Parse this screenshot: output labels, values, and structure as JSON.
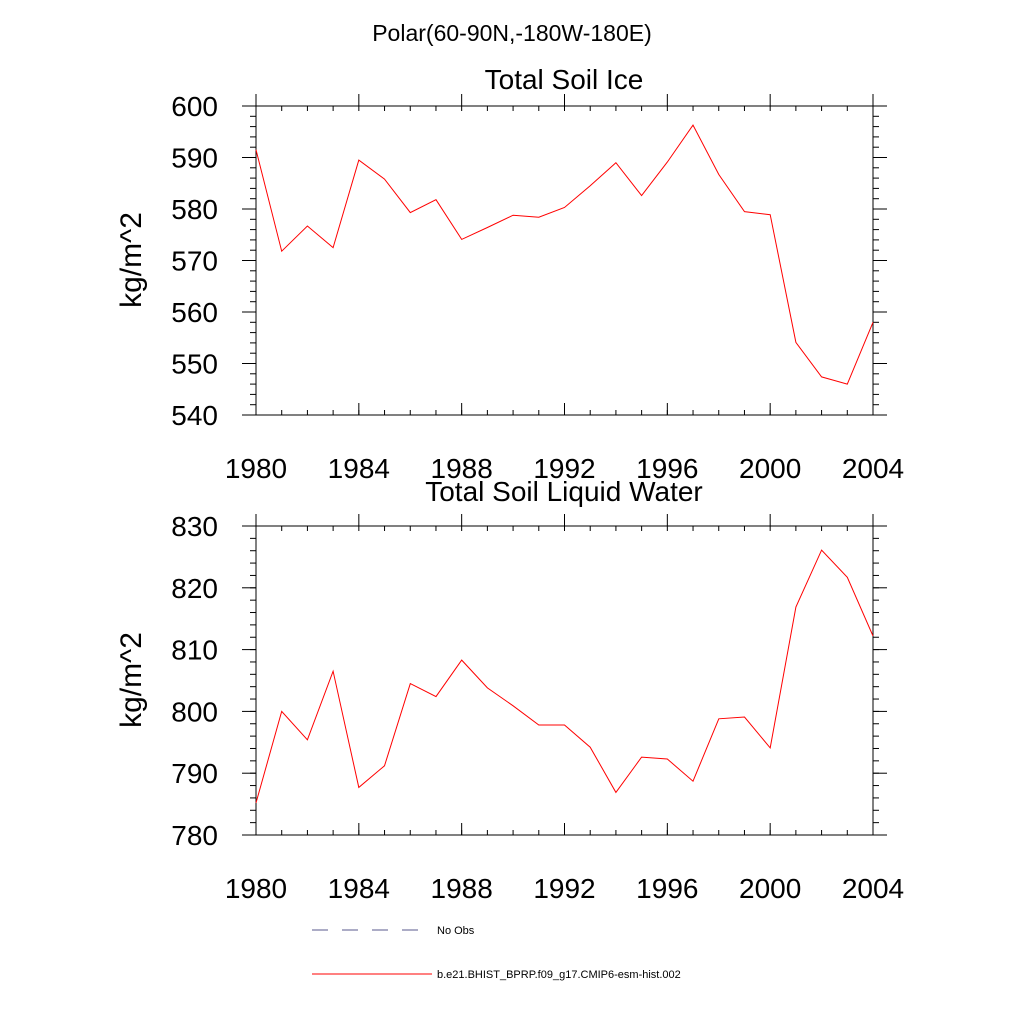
{
  "suptitle": "Polar(60-90N,-180W-180E)",
  "colors": {
    "model_line": "#ff0000",
    "obs_line": "#5a5a8c",
    "axes": "#000000"
  },
  "legend": {
    "obs_label": "No Obs",
    "model_label": "b.e21.BHIST_BPRP.f09_g17.CMIP6-esm-hist.002"
  },
  "chart_data": [
    {
      "type": "line",
      "title": "Total Soil Ice",
      "ylabel": "kg/m^2",
      "xlim": [
        1980,
        2004
      ],
      "ylim": [
        540,
        600
      ],
      "xticks": [
        1980,
        1984,
        1988,
        1992,
        1996,
        2000,
        2004
      ],
      "yticks": [
        540,
        550,
        560,
        570,
        580,
        590,
        600
      ],
      "series": [
        {
          "color": "#ff0000",
          "x": [
            1980,
            1981,
            1982,
            1983,
            1984,
            1985,
            1986,
            1987,
            1988,
            1989,
            1990,
            1991,
            1992,
            1993,
            1994,
            1995,
            1996,
            1997,
            1998,
            1999,
            2000,
            2001,
            2002,
            2003,
            2004
          ],
          "y": [
            591.5,
            571.8,
            576.7,
            572.5,
            589.5,
            585.8,
            579.3,
            581.8,
            574.1,
            576.4,
            578.8,
            578.4,
            580.3,
            584.5,
            589.0,
            582.6,
            589.1,
            596.3,
            586.7,
            579.5,
            578.9,
            554.1,
            547.4,
            546.0,
            558.0
          ]
        }
      ]
    },
    {
      "type": "line",
      "title": "Total Soil Liquid Water",
      "ylabel": "kg/m^2",
      "xlim": [
        1980,
        2004
      ],
      "ylim": [
        780,
        830
      ],
      "xticks": [
        1980,
        1984,
        1988,
        1992,
        1996,
        2000,
        2004
      ],
      "yticks": [
        780,
        790,
        800,
        810,
        820,
        830
      ],
      "series": [
        {
          "color": "#ff0000",
          "x": [
            1980,
            1981,
            1982,
            1983,
            1984,
            1985,
            1986,
            1987,
            1988,
            1989,
            1990,
            1991,
            1992,
            1993,
            1994,
            1995,
            1996,
            1997,
            1998,
            1999,
            2000,
            2001,
            2002,
            2003,
            2004
          ],
          "y": [
            785.2,
            800.0,
            795.4,
            806.5,
            787.7,
            791.2,
            804.5,
            802.4,
            808.3,
            803.8,
            800.9,
            797.8,
            797.8,
            794.2,
            786.9,
            792.6,
            792.3,
            788.7,
            798.8,
            799.1,
            794.1,
            816.9,
            826.1,
            821.7,
            812.2
          ]
        }
      ]
    }
  ]
}
